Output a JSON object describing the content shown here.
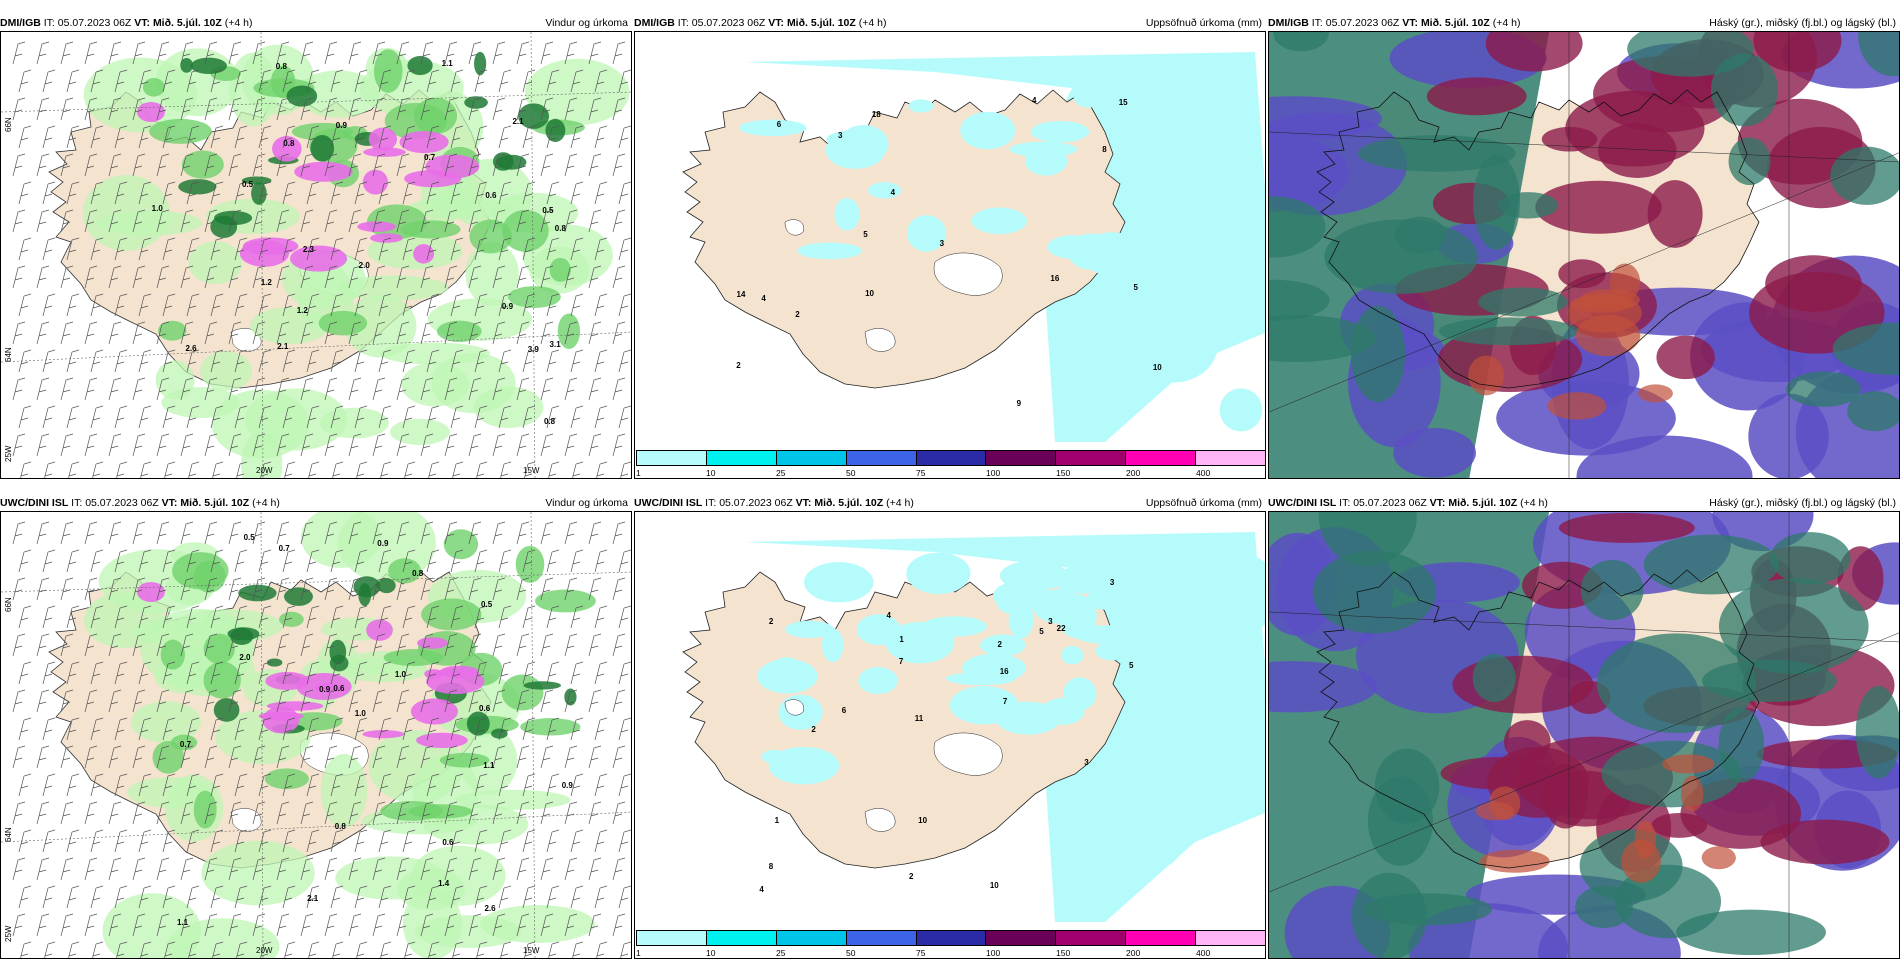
{
  "panels": [
    {
      "model": "DMI/IGB",
      "it_label": "IT:",
      "it": "05.07.2023 06Z",
      "vt_label": "VT:",
      "vt": "Mið. 5.júl. 10Z",
      "lead": "(+4 h)",
      "right": "Vindur og úrkoma",
      "type": "wind"
    },
    {
      "model": "DMI/IGB",
      "it_label": "IT:",
      "it": "05.07.2023 06Z",
      "vt_label": "VT:",
      "vt": "Mið. 5.júl. 10Z",
      "lead": "(+4 h)",
      "right": "Uppsöfnuð úrkoma (mm)",
      "type": "precip"
    },
    {
      "model": "DMI/IGB",
      "it_label": "IT:",
      "it": "05.07.2023 06Z",
      "vt_label": "VT:",
      "vt": "Mið. 5.júl. 10Z",
      "lead": "(+4 h)",
      "right": "Háský (gr.), miðský (fj.bl.) og lágský (bl.)",
      "type": "cloud"
    },
    {
      "model": "UWC/DINI ISL",
      "it_label": "IT:",
      "it": "05.07.2023 06Z",
      "vt_label": "VT:",
      "vt": "Mið. 5.júl. 10Z",
      "lead": "(+4 h)",
      "right": "Vindur og úrkoma",
      "type": "wind"
    },
    {
      "model": "UWC/DINI ISL",
      "it_label": "IT:",
      "it": "05.07.2023 06Z",
      "vt_label": "VT:",
      "vt": "Mið. 5.júl. 10Z",
      "lead": "(+4 h)",
      "right": "Uppsöfnuð úrkoma (mm)",
      "type": "precip"
    },
    {
      "model": "UWC/DINI ISL",
      "it_label": "IT:",
      "it": "05.07.2023 06Z",
      "vt_label": "VT:",
      "vt": "Mið. 5.júl. 10Z",
      "lead": "(+4 h)",
      "right": "Háský (gr.), miðský (fj.bl.) og lágský (bl.)",
      "type": "cloud"
    }
  ],
  "colorbar": {
    "ticks": [
      "1",
      "10",
      "25",
      "50",
      "75",
      "100",
      "150",
      "200",
      "400"
    ],
    "colors": [
      "#b6fbfb",
      "#00f0f0",
      "#00c4e8",
      "#3c63e8",
      "#2b2ba8",
      "#6a0058",
      "#a0006e",
      "#ff00b4",
      "#ffb4f5"
    ]
  },
  "axes": {
    "lon_a": "20W",
    "lon_b": "15W",
    "lat_a": "66N",
    "lat_b": "64N",
    "lat_c": "25W"
  },
  "wind_labels_top": [
    "0.8",
    "0.5",
    "0.7",
    "0.8",
    "2.3",
    "3.1",
    "1.2",
    "1.1",
    "3.9",
    "2.1",
    "0.5",
    "0.9",
    "0.6",
    "2.1",
    "2.6",
    "2.0",
    "1.2",
    "1.0",
    "0.8",
    "0.9",
    "0.8"
  ],
  "wind_labels_bottom": [
    "0.8",
    "0.7",
    "1.0",
    "0.9",
    "0.6",
    "0.6",
    "1.1",
    "2.6",
    "2.0",
    "2.1",
    "1.4",
    "0.9",
    "0.5",
    "1.1",
    "1.0",
    "0.8",
    "0.6",
    "0.7",
    "0.5",
    "0.9"
  ],
  "precip_labels_top": [
    "3",
    "14",
    "6",
    "5",
    "9",
    "8",
    "2",
    "10",
    "16",
    "15",
    "10",
    "4",
    "4",
    "5",
    "2",
    "4",
    "3",
    "18"
  ],
  "precip_labels_bottom": [
    "10",
    "7",
    "5",
    "3",
    "8",
    "2",
    "5",
    "1",
    "2",
    "10",
    "22",
    "7",
    "4",
    "11",
    "16",
    "3",
    "2",
    "1",
    "2",
    "4",
    "6",
    "3"
  ],
  "colors": {
    "land": "#f4e3cf",
    "sea": "#ffffff",
    "green_light": "#bff5b4",
    "green_mid": "#6fd26c",
    "green_dark": "#1e7a35",
    "magenta": "#e86ee8",
    "purple": "#9a5fb2",
    "precip_sea": "#b6fbfb",
    "cloud_high": "#8c1a4a",
    "cloud_mid": "#5a4fc4",
    "cloud_low": "#2d7a6a"
  }
}
